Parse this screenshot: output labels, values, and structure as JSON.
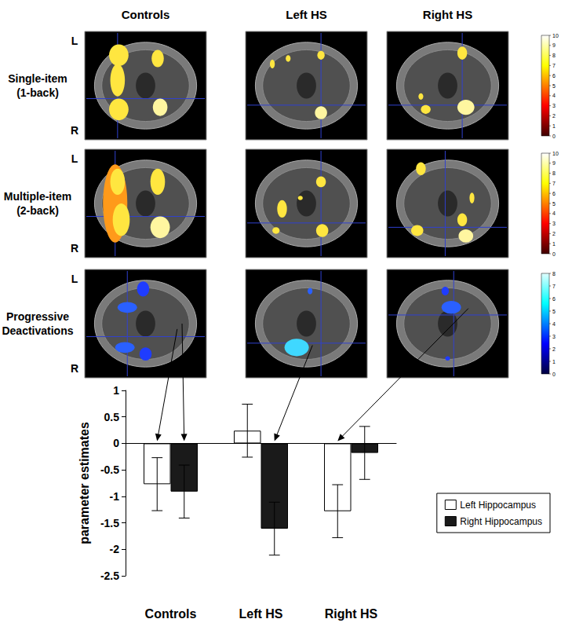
{
  "panels": {
    "columns": [
      "Controls",
      "Left HS",
      "Right HS"
    ],
    "rows": [
      [
        "Single-item",
        "(1-back)"
      ],
      [
        "Multiple-item",
        "(2-back)"
      ],
      [
        "Progressive",
        "Deactivations"
      ]
    ],
    "orientation_labels": [
      "L",
      "R"
    ],
    "colorbars": [
      {
        "range": [
          0,
          10
        ],
        "ticks": [
          0,
          1,
          2,
          3,
          4,
          5,
          6,
          7,
          8,
          9,
          10
        ]
      },
      {
        "range": [
          0,
          10
        ],
        "ticks": [
          0,
          1,
          2,
          3,
          4,
          5,
          6,
          7,
          8,
          9,
          10
        ]
      },
      {
        "range": [
          0,
          8
        ],
        "ticks": [
          0,
          1,
          2,
          3,
          4,
          5,
          6,
          7,
          8
        ]
      }
    ]
  },
  "chart_data": {
    "type": "bar",
    "ylabel": "parameter estimates",
    "categories": [
      "Controls",
      "Left HS",
      "Right HS"
    ],
    "series": [
      {
        "name": "Left Hippocampus",
        "color": "#ffffff",
        "values": [
          -0.77,
          0.24,
          -1.28
        ],
        "errors": [
          0.5,
          0.5,
          0.5
        ]
      },
      {
        "name": "Right Hippocampus",
        "color": "#1a1a1a",
        "values": [
          -0.91,
          -1.61,
          -0.18
        ],
        "errors": [
          0.5,
          0.5,
          0.5
        ]
      }
    ],
    "ylim": [
      -2.5,
      1
    ],
    "yticks": [
      -2.5,
      -2,
      -1.5,
      -1,
      -0.5,
      0,
      0.5,
      1
    ],
    "grid": false,
    "legend": "right"
  }
}
